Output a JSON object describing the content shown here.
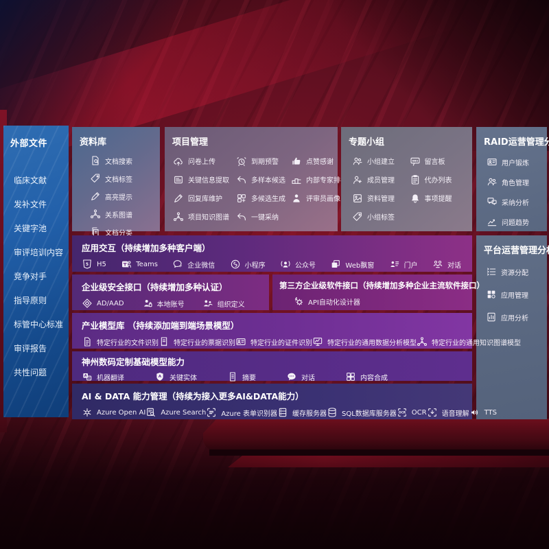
{
  "sidebar": {
    "title": "外部文件",
    "items": [
      {
        "label": "临床文献"
      },
      {
        "label": "发补文件"
      },
      {
        "label": "关键字池"
      },
      {
        "label": "审评培训内容"
      },
      {
        "label": "竞争对手"
      },
      {
        "label": "指导原则"
      },
      {
        "label": "标管中心标准"
      },
      {
        "label": "审评报告"
      },
      {
        "label": "共性问题"
      }
    ]
  },
  "panels": {
    "library": {
      "title": "资料库",
      "items": [
        {
          "icon": "doc-search",
          "label": "文档搜索"
        },
        {
          "icon": "tag",
          "label": "文档标签"
        },
        {
          "icon": "pencil",
          "label": "高亮提示"
        },
        {
          "icon": "network",
          "label": "关系图谱"
        },
        {
          "icon": "doc-copy",
          "label": "文档分类"
        }
      ]
    },
    "project": {
      "title": "项目管理",
      "items": [
        {
          "icon": "cloud-upload",
          "label": "问卷上传"
        },
        {
          "icon": "doc-lines",
          "label": "关键信息提取"
        },
        {
          "icon": "pencil",
          "label": "回复库维护"
        },
        {
          "icon": "network",
          "label": "项目知识图谱"
        },
        {
          "icon": "alarm",
          "label": "到期预警"
        },
        {
          "icon": "reply",
          "label": "多样本候选"
        },
        {
          "icon": "generate",
          "label": "多候选生成"
        },
        {
          "icon": "adopt-arrow",
          "label": "一键采纳"
        },
        {
          "icon": "thumb-up",
          "label": "点赞感谢"
        },
        {
          "icon": "ranking",
          "label": "内部专家排名"
        },
        {
          "icon": "person-solid",
          "label": "评审员画像"
        }
      ]
    },
    "group": {
      "title": "专题小组",
      "items": [
        {
          "icon": "people",
          "label": "小组建立"
        },
        {
          "icon": "person-add",
          "label": "成员管理"
        },
        {
          "icon": "album",
          "label": "资料管理"
        },
        {
          "icon": "tag",
          "label": "小组标签"
        },
        {
          "icon": "bbs",
          "label": "留言板"
        },
        {
          "icon": "clipboard",
          "label": "代办列表"
        },
        {
          "icon": "bell",
          "label": "事项提醒"
        }
      ]
    },
    "raid": {
      "title": "RAID运营管理分析",
      "items": [
        {
          "icon": "id-card",
          "label": "用户锻炼"
        },
        {
          "icon": "people",
          "label": "角色管理"
        },
        {
          "icon": "chat-qa",
          "label": "采纳分析"
        },
        {
          "icon": "trend",
          "label": "问题趋势"
        }
      ]
    },
    "platform": {
      "title": "平台运营管理分析",
      "items": [
        {
          "icon": "list-tune",
          "label": "资源分配"
        },
        {
          "icon": "grid-apps",
          "label": "应用管理"
        },
        {
          "icon": "report",
          "label": "应用分析"
        }
      ]
    },
    "interaction": {
      "title": "应用交互（持续增加多种客户端）",
      "items": [
        {
          "icon": "html5",
          "label": "H5"
        },
        {
          "icon": "teams",
          "label": "Teams"
        },
        {
          "icon": "wechat-work",
          "label": "企业微信"
        },
        {
          "icon": "miniprogram",
          "label": "小程序"
        },
        {
          "icon": "official-account",
          "label": "公众号"
        },
        {
          "icon": "web-window",
          "label": "Web飘窗"
        },
        {
          "icon": "portal",
          "label": "门户"
        },
        {
          "icon": "dialog",
          "label": "对话"
        }
      ]
    },
    "security": {
      "title": "企业级安全接口（持续增加多种认证）",
      "items": [
        {
          "icon": "ad-diamond",
          "label": "AD/AAD"
        },
        {
          "icon": "account-local",
          "label": "本地账号"
        },
        {
          "icon": "org-define",
          "label": "组织定义"
        }
      ]
    },
    "thirdparty": {
      "title": "第三方企业级软件接口（持续增加多种企业主流软件接口）",
      "items": [
        {
          "icon": "api-gear",
          "label": "API自动化设计器"
        }
      ]
    },
    "models": {
      "title": "产业模型库 （持续添加端到端场景模型）",
      "items": [
        {
          "icon": "doc-file",
          "label": "特定行业的文件识别"
        },
        {
          "icon": "receipt",
          "label": "特定行业的票据识别"
        },
        {
          "icon": "id-badge",
          "label": "特定行业的证件识别"
        },
        {
          "icon": "data-model",
          "label": "特定行业的通用数据分析模型"
        },
        {
          "icon": "knowledge-graph",
          "label": "特定行业的通用知识图谱模型"
        }
      ]
    },
    "foundation": {
      "title": "神州数码定制基础模型能力",
      "items": [
        {
          "icon": "translate",
          "label": "机器翻译"
        },
        {
          "icon": "entity-badge",
          "label": "关键实体"
        },
        {
          "icon": "summary-doc",
          "label": "摘要"
        },
        {
          "icon": "chat-dots",
          "label": "对话"
        },
        {
          "icon": "compose-grid",
          "label": "内容合成"
        }
      ]
    },
    "aidata": {
      "title": "AI & DATA 能力管理（持续为接入更多AI&DATA能力）",
      "items": [
        {
          "icon": "openai",
          "label": "Azure Open AI"
        },
        {
          "icon": "azure-search",
          "label": "Azure Search"
        },
        {
          "icon": "form-recognizer",
          "label": "Azure 表单识别器"
        },
        {
          "icon": "cache-server",
          "label": "缓存服务器"
        },
        {
          "icon": "sql-db",
          "label": "SQL数据库服务器"
        },
        {
          "icon": "ocr",
          "label": "OCR"
        },
        {
          "icon": "speech",
          "label": "语音理解"
        },
        {
          "icon": "tts",
          "label": "TTS"
        }
      ]
    }
  },
  "colors": {
    "background_red": "#5e0f1d",
    "sidebar_blue": "#1d55a2",
    "accent_magenta": "#8c2f86",
    "accent_violet": "#6e2f94",
    "accent_indigo": "#3a3174",
    "panel_slate": "#5a6880"
  }
}
